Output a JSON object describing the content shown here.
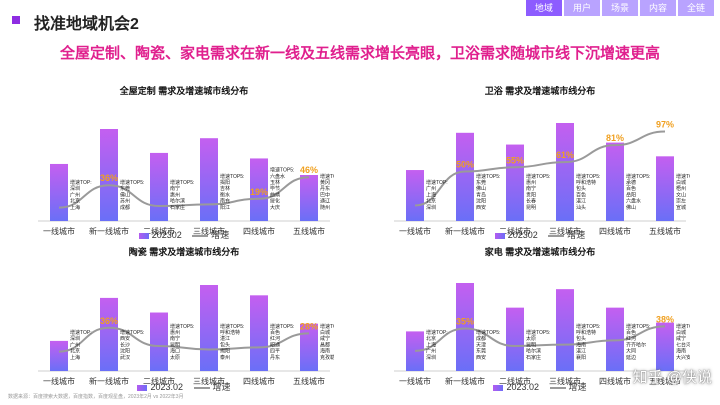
{
  "header": {
    "title": "找准地域机会2",
    "tabs": [
      "地域",
      "用户",
      "场景",
      "内容",
      "全链"
    ]
  },
  "headline": "全屋定制、陶瓷、家电需求在新一线及五线需求增长亮眼，卫浴需求随城市线下沉增速更高",
  "footer": "数据来源：百度搜索大数据，百度指数，百度观星盘，2023年2月 vs 2022年3月",
  "watermark": "知乎 @侠说",
  "colors": {
    "bar_top": "#c45ff0",
    "bar_bottom": "#6a6ff7",
    "line": "#9a9a9a",
    "label": "#f0a020"
  },
  "chart_data": [
    {
      "type": "bar",
      "title": "全屋定制 需求及增速城市线分布",
      "categories": [
        "一线城市",
        "新一线城市",
        "二线城市",
        "三线城市",
        "四线城市",
        "五线城市"
      ],
      "series": [
        {
          "name": "202302",
          "type": "bar",
          "values": [
            0.62,
            1.0,
            0.74,
            0.9,
            0.68,
            0.5
          ]
        },
        {
          "name": "增速",
          "type": "line",
          "values": [
            0.08,
            0.36,
            0.1,
            0.12,
            0.19,
            0.46
          ]
        }
      ],
      "data_labels": [
        "",
        "36%",
        "",
        "",
        "19%",
        "46%"
      ],
      "annotations": [
        {
          "title": "增速TOP:",
          "items": [
            "深圳",
            "广州",
            "北京",
            "上海"
          ]
        },
        {
          "title": "增速TOP5:",
          "items": [
            "东莞",
            "佛山",
            "苏州",
            "成都"
          ]
        },
        {
          "title": "增速TOP5:",
          "items": [
            "南宁",
            "惠州",
            "哈尔滨",
            "石家庄"
          ]
        },
        {
          "title": "增速TOP5:",
          "items": [
            "揭阳",
            "吉林",
            "衡水",
            "南充",
            "阳江"
          ]
        },
        {
          "title": "增速TOP5:",
          "items": [
            "六盘水",
            "玉林",
            "毕节",
            "曲靖",
            "绥化",
            "大庆"
          ]
        },
        {
          "title": "增速TOP5:",
          "items": [
            "黄冈",
            "丹东",
            "巴中",
            "通辽",
            "随州"
          ]
        }
      ],
      "legend": [
        "202302",
        "增速"
      ]
    },
    {
      "type": "bar",
      "title": "卫浴 需求及增速城市线分布",
      "categories": [
        "一线城市",
        "新一线城市",
        "二线城市",
        "三线城市",
        "四线城市",
        "五线城市"
      ],
      "series": [
        {
          "name": "202302",
          "type": "bar",
          "values": [
            0.52,
            0.9,
            0.78,
            1.0,
            0.8,
            0.66
          ]
        },
        {
          "name": "增速",
          "type": "line",
          "values": [
            0.1,
            0.5,
            0.55,
            0.61,
            0.81,
            0.97
          ]
        }
      ],
      "data_labels": [
        "",
        "50%",
        "55%",
        "61%",
        "81%",
        "97%"
      ],
      "annotations": [
        {
          "title": "增速TOP:",
          "items": [
            "广州",
            "上海",
            "北京",
            "深圳"
          ]
        },
        {
          "title": "增速TOP5:",
          "items": [
            "东莞",
            "佛山",
            "青岛",
            "沈阳",
            "西安"
          ]
        },
        {
          "title": "增速TOP5:",
          "items": [
            "惠州",
            "南宁",
            "贵阳",
            "长春",
            "昆明"
          ]
        },
        {
          "title": "增速TOP5:",
          "items": [
            "呼和浩特",
            "包头",
            "百色",
            "湛江",
            "汕头"
          ]
        },
        {
          "title": "增速TOP5:",
          "items": [
            "承德",
            "百色",
            "岳阳",
            "六盘水",
            "佛山"
          ]
        },
        {
          "title": "增速TOP5:",
          "items": [
            "白城",
            "梧州",
            "文山",
            "崇左",
            "宣城"
          ]
        }
      ],
      "legend": [
        "202302",
        "增速"
      ]
    },
    {
      "type": "bar",
      "title": "陶瓷 需求及增速城市线分布",
      "categories": [
        "一线城市",
        "新一线城市",
        "二线城市",
        "三线城市",
        "四线城市",
        "五线城市"
      ],
      "series": [
        {
          "name": "2023.02",
          "type": "bar",
          "values": [
            0.35,
            0.85,
            0.68,
            1.0,
            0.88,
            0.55
          ]
        },
        {
          "name": "增速",
          "type": "line",
          "values": [
            0.02,
            0.36,
            0.1,
            0.05,
            0.08,
            0.28
          ]
        }
      ],
      "data_labels": [
        "",
        "36%",
        "",
        "",
        "",
        "28%"
      ],
      "annotations": [
        {
          "title": "增速TOP:",
          "items": [
            "深圳",
            "广州",
            "北京",
            "上海"
          ]
        },
        {
          "title": "增速TOP5:",
          "items": [
            "西安",
            "长沙",
            "沈阳",
            "武汉"
          ]
        },
        {
          "title": "增速TOP5:",
          "items": [
            "惠州",
            "南宁",
            "昆明",
            "海口",
            "太原"
          ]
        },
        {
          "title": "增速TOP5:",
          "items": [
            "呼和浩特",
            "湛江",
            "包头",
            "揭阳",
            "泰州"
          ]
        },
        {
          "title": "增速TOP5:",
          "items": [
            "百色",
            "红河",
            "昭通",
            "四平",
            "丹东"
          ]
        },
        {
          "title": "增速TOP5:",
          "items": [
            "白城",
            "咸宁",
            "昌都",
            "海南",
            "克孜勒苏"
          ]
        }
      ],
      "legend": [
        "2023.02",
        "增速"
      ]
    },
    {
      "type": "bar",
      "title": "家电 需求及增速城市线分布",
      "categories": [
        "一线城市",
        "新一线城市",
        "二线城市",
        "三线城市",
        "四线城市",
        "五线城市"
      ],
      "series": [
        {
          "name": "2023.02",
          "type": "bar",
          "values": [
            0.45,
            1.0,
            0.72,
            0.93,
            0.72,
            0.55
          ]
        },
        {
          "name": "增速",
          "type": "line",
          "values": [
            0.03,
            0.35,
            0.1,
            0.12,
            0.18,
            0.38
          ]
        }
      ],
      "data_labels": [
        "",
        "35%",
        "",
        "",
        "",
        "38%"
      ],
      "annotations": [
        {
          "title": "增速TOP:",
          "items": [
            "北京",
            "上海",
            "广州",
            "深圳"
          ]
        },
        {
          "title": "增速TOP5:",
          "items": [
            "成都",
            "天津",
            "东莞",
            "西安"
          ]
        },
        {
          "title": "增速TOP5:",
          "items": [
            "太原",
            "昆明",
            "哈尔滨",
            "石家庄"
          ]
        },
        {
          "title": "增速TOP5:",
          "items": [
            "呼和浩特",
            "包头",
            "海南",
            "湛江",
            "襄阳"
          ]
        },
        {
          "title": "增速TOP5:",
          "items": [
            "百色",
            "红河",
            "齐齐哈尔",
            "大同",
            "延边"
          ]
        },
        {
          "title": "增速TOP5:",
          "items": [
            "白城",
            "咸宁",
            "七台河",
            "海南",
            "大兴安岭"
          ]
        }
      ],
      "legend": [
        "2023.02",
        "增速"
      ]
    }
  ]
}
